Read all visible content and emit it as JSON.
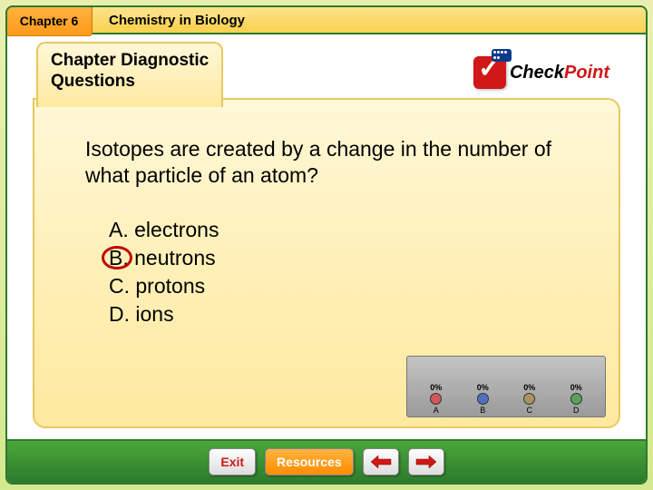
{
  "header": {
    "chapter_badge": "Chapter 6",
    "chapter_title": "Chemistry in Biology"
  },
  "tab": {
    "line1": "Chapter Diagnostic",
    "line2": "Questions"
  },
  "checkpoint": {
    "text1": "Check",
    "text2": "Point"
  },
  "question": "Isotopes are created by a change in the number of what particle of an atom?",
  "answers": [
    {
      "letter": "A.",
      "text": "electrons",
      "correct": false
    },
    {
      "letter": "B.",
      "text": "neutrons",
      "correct": true
    },
    {
      "letter": "C.",
      "text": "protons",
      "correct": false
    },
    {
      "letter": "D.",
      "text": "ions",
      "correct": false
    }
  ],
  "poll": {
    "background": "#a8a8a8",
    "columns": [
      {
        "pct": "0%",
        "label": "A",
        "dot_color": "#d05858"
      },
      {
        "pct": "0%",
        "label": "B",
        "dot_color": "#5070c0"
      },
      {
        "pct": "0%",
        "label": "C",
        "dot_color": "#a8945c"
      },
      {
        "pct": "0%",
        "label": "D",
        "dot_color": "#5aa05a"
      }
    ]
  },
  "buttons": {
    "exit": "Exit",
    "resources": "Resources"
  },
  "colors": {
    "frame_border": "#2d7a2d",
    "badge_bg": "#ff9a1a",
    "panel_bg": "#ffe9a0",
    "correct_circle": "#c00000",
    "checkpoint_red": "#d01818",
    "arrow_fill": "#d01818"
  }
}
